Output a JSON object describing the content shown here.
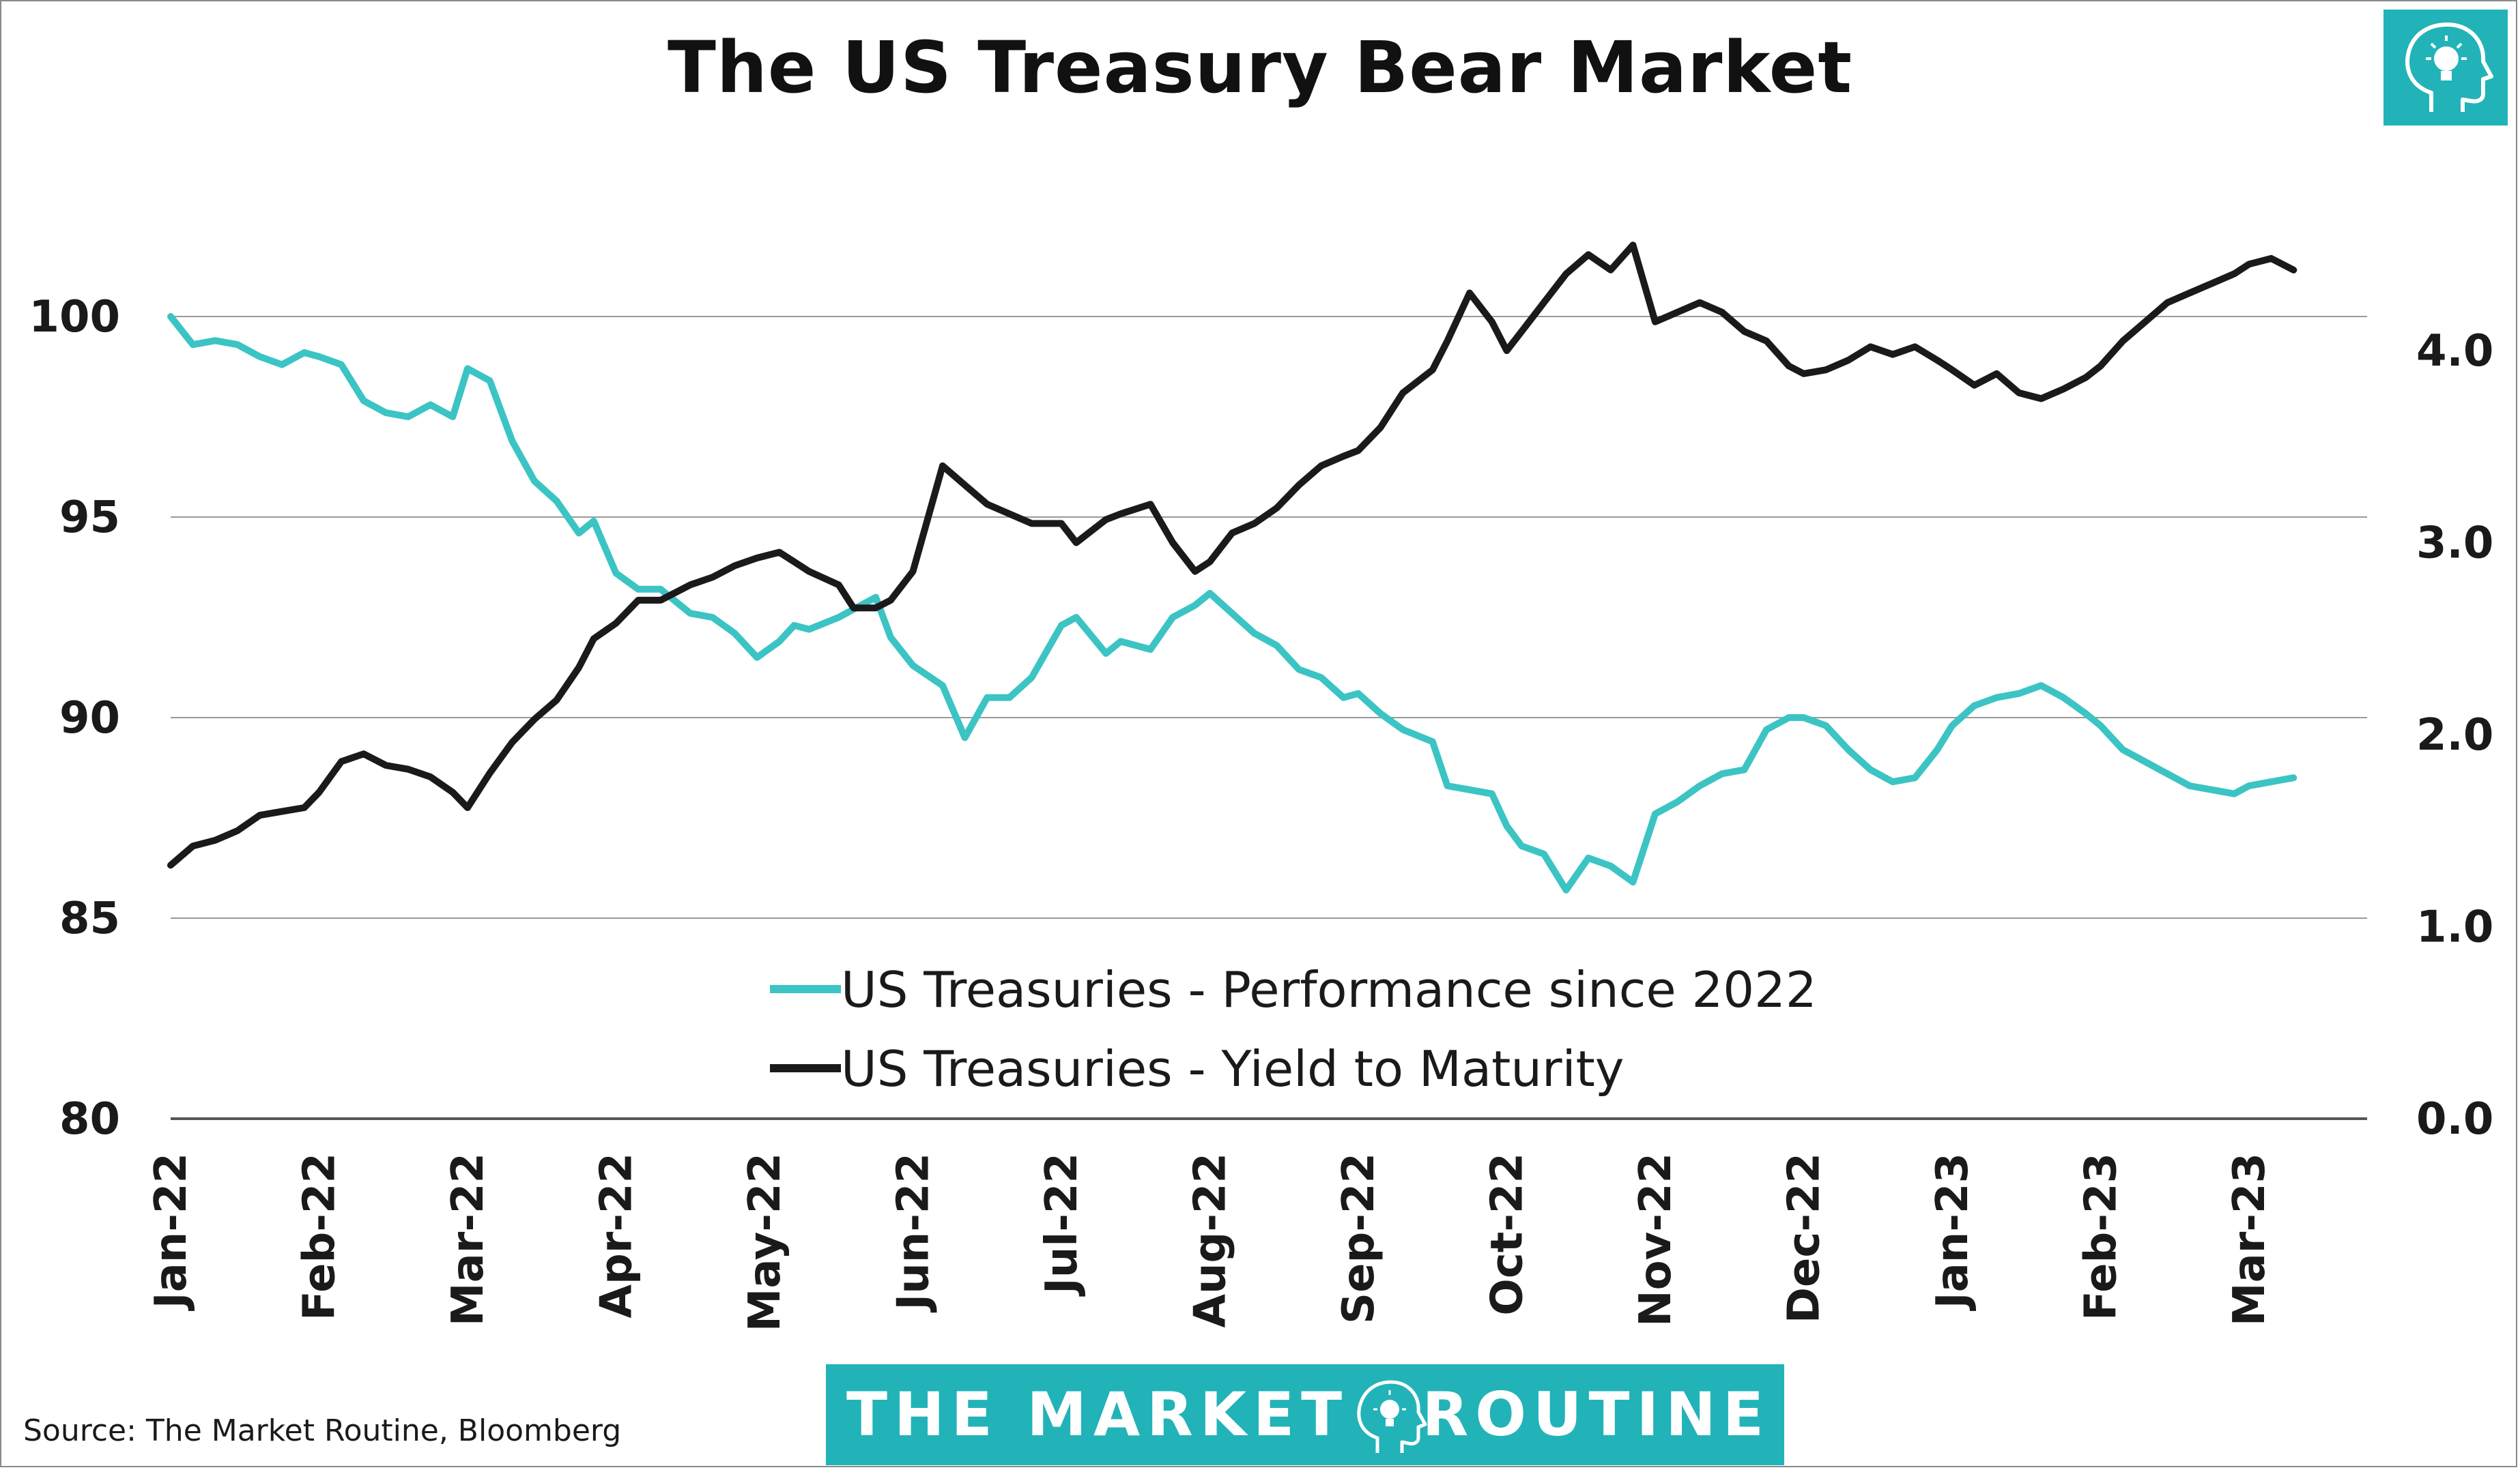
{
  "chart_data": {
    "type": "line",
    "title": "The US Treasury Bear Market",
    "x_tick_labels": [
      "Jan-22",
      "Feb-22",
      "Mar-22",
      "Apr-22",
      "May-22",
      "Jun-22",
      "Jul-22",
      "Aug-22",
      "Sep-22",
      "Oct-22",
      "Nov-22",
      "Dec-22",
      "Jan-23",
      "Feb-23",
      "Mar-23"
    ],
    "y_left": {
      "ylim": [
        80,
        102
      ],
      "ticks": [
        "80",
        "85",
        "90",
        "95",
        "100"
      ]
    },
    "y_right": {
      "ylim": [
        0.0,
        4.6
      ],
      "ticks": [
        "0.0",
        "1.0",
        "2.0",
        "3.0",
        "4.0"
      ]
    },
    "grid": true,
    "legend_position": "bottom-center",
    "series": [
      {
        "name": "US Treasuries - Performance since 2022",
        "axis": "left",
        "color": "#3cc4c4",
        "x": [
          0,
          0.15,
          0.3,
          0.45,
          0.6,
          0.75,
          0.9,
          1.0,
          1.15,
          1.3,
          1.45,
          1.6,
          1.75,
          1.9,
          2.0,
          2.15,
          2.3,
          2.45,
          2.6,
          2.75,
          2.85,
          3.0,
          3.15,
          3.3,
          3.5,
          3.65,
          3.8,
          3.95,
          4.1,
          4.2,
          4.3,
          4.5,
          4.6,
          4.75,
          4.85,
          5.0,
          5.2,
          5.35,
          5.5,
          5.65,
          5.8,
          6.0,
          6.1,
          6.3,
          6.4,
          6.6,
          6.75,
          6.9,
          7.0,
          7.15,
          7.3,
          7.45,
          7.6,
          7.75,
          7.9,
          8.0,
          8.15,
          8.3,
          8.5,
          8.6,
          8.75,
          8.9,
          9.0,
          9.1,
          9.25,
          9.4,
          9.55,
          9.7,
          9.85,
          10.0,
          10.15,
          10.3,
          10.45,
          10.6,
          10.75,
          10.9,
          11.0,
          11.15,
          11.3,
          11.45,
          11.6,
          11.75,
          11.9,
          12.0,
          12.15,
          12.3,
          12.45,
          12.6,
          12.75,
          12.9,
          13.0,
          13.15,
          13.3,
          13.45,
          13.6,
          13.75,
          13.9,
          14.0,
          14.15,
          14.3
        ],
        "values": [
          100.0,
          99.3,
          99.4,
          99.3,
          99.0,
          98.8,
          99.1,
          99.0,
          98.8,
          97.9,
          97.6,
          97.5,
          97.8,
          97.5,
          98.7,
          98.4,
          96.9,
          95.9,
          95.4,
          94.6,
          94.9,
          93.6,
          93.2,
          93.2,
          92.6,
          92.5,
          92.1,
          91.5,
          91.9,
          92.3,
          92.2,
          92.5,
          92.7,
          93.0,
          92.0,
          91.3,
          90.8,
          89.5,
          90.5,
          90.5,
          91.0,
          92.3,
          92.5,
          91.6,
          91.9,
          91.7,
          92.5,
          92.8,
          93.1,
          92.6,
          92.1,
          91.8,
          91.2,
          91.0,
          90.5,
          90.6,
          90.1,
          89.7,
          89.4,
          88.3,
          88.2,
          88.1,
          87.3,
          86.8,
          86.6,
          85.7,
          86.5,
          86.3,
          85.9,
          87.6,
          87.9,
          88.3,
          88.6,
          88.7,
          89.7,
          90.0,
          90.0,
          89.8,
          89.2,
          88.7,
          88.4,
          88.5,
          89.2,
          89.8,
          90.3,
          90.5,
          90.6,
          90.8,
          90.5,
          90.1,
          89.8,
          89.2,
          88.9,
          88.6,
          88.3,
          88.2,
          88.1,
          88.3,
          88.4,
          88.5
        ]
      },
      {
        "name": "US Treasuries - Yield to Maturity",
        "axis": "right",
        "color": "#1a1a1a",
        "x": [
          0,
          0.15,
          0.3,
          0.45,
          0.6,
          0.75,
          0.9,
          1.0,
          1.15,
          1.3,
          1.45,
          1.6,
          1.75,
          1.9,
          2.0,
          2.15,
          2.3,
          2.45,
          2.6,
          2.75,
          2.85,
          3.0,
          3.15,
          3.3,
          3.5,
          3.65,
          3.8,
          3.95,
          4.1,
          4.2,
          4.3,
          4.5,
          4.6,
          4.75,
          4.85,
          5.0,
          5.2,
          5.35,
          5.5,
          5.65,
          5.8,
          6.0,
          6.1,
          6.3,
          6.4,
          6.6,
          6.75,
          6.9,
          7.0,
          7.15,
          7.3,
          7.45,
          7.6,
          7.75,
          7.9,
          8.0,
          8.15,
          8.3,
          8.5,
          8.6,
          8.75,
          8.9,
          9.0,
          9.1,
          9.25,
          9.4,
          9.55,
          9.7,
          9.85,
          10.0,
          10.15,
          10.3,
          10.45,
          10.6,
          10.75,
          10.9,
          11.0,
          11.15,
          11.3,
          11.45,
          11.6,
          11.75,
          11.9,
          12.0,
          12.15,
          12.3,
          12.45,
          12.6,
          12.75,
          12.9,
          13.0,
          13.15,
          13.3,
          13.45,
          13.6,
          13.75,
          13.9,
          14.0,
          14.15,
          14.3
        ],
        "values": [
          1.32,
          1.42,
          1.45,
          1.5,
          1.58,
          1.6,
          1.62,
          1.7,
          1.86,
          1.9,
          1.84,
          1.82,
          1.78,
          1.7,
          1.62,
          1.8,
          1.96,
          2.08,
          2.18,
          2.35,
          2.5,
          2.58,
          2.7,
          2.7,
          2.78,
          2.82,
          2.88,
          2.92,
          2.95,
          2.9,
          2.85,
          2.78,
          2.66,
          2.66,
          2.7,
          2.85,
          3.4,
          3.3,
          3.2,
          3.15,
          3.1,
          3.1,
          3.0,
          3.12,
          3.15,
          3.2,
          3.0,
          2.85,
          2.9,
          3.05,
          3.1,
          3.18,
          3.3,
          3.4,
          3.45,
          3.48,
          3.6,
          3.78,
          3.9,
          4.05,
          4.3,
          4.15,
          4.0,
          4.1,
          4.25,
          4.4,
          4.5,
          4.42,
          4.55,
          4.15,
          4.2,
          4.25,
          4.2,
          4.1,
          4.05,
          3.92,
          3.88,
          3.9,
          3.95,
          4.02,
          3.98,
          4.02,
          3.95,
          3.9,
          3.82,
          3.88,
          3.78,
          3.75,
          3.8,
          3.86,
          3.92,
          4.05,
          4.15,
          4.25,
          4.3,
          4.35,
          4.4,
          4.45,
          4.48,
          4.42
        ]
      }
    ],
    "legend": [
      {
        "label": "US Treasuries - Performance since 2022",
        "color": "#3cc4c4"
      },
      {
        "label": "US Treasuries - Yield to Maturity",
        "color": "#1a1a1a"
      }
    ]
  },
  "brand": {
    "banner_left": "THE MARKET",
    "banner_right": "ROUTINE",
    "banner_color": "#22b3b8",
    "logo_icon": "head-lightbulb-icon"
  },
  "source_note": "Source: The Market Routine, Bloomberg"
}
